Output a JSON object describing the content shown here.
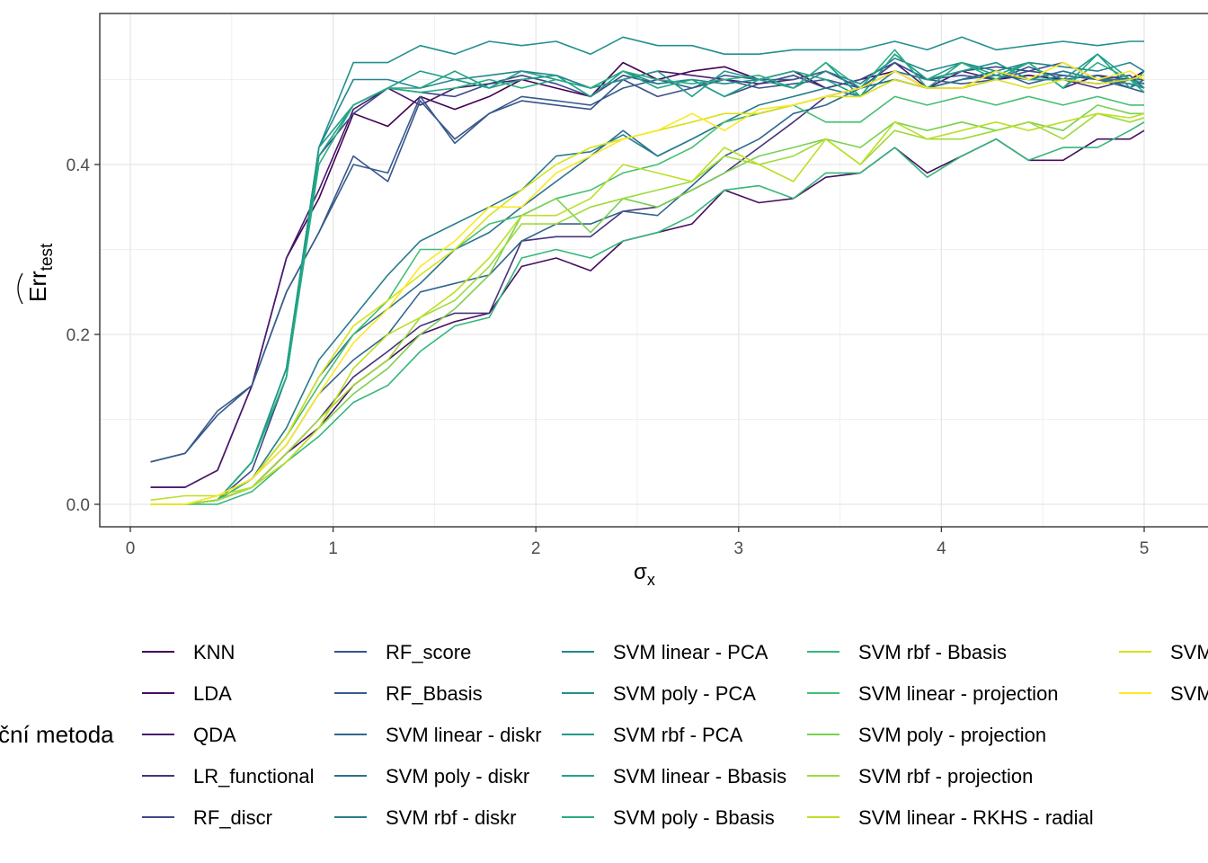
{
  "chart_data": {
    "type": "line",
    "xlabel": "σ",
    "xlabel_sub": "x",
    "ylabel": "Err",
    "ylabel_sub": "test",
    "xlim": [
      -0.15,
      5.3
    ],
    "ylim": [
      -0.025,
      0.57
    ],
    "xticks": [
      0,
      1,
      2,
      3,
      4,
      5
    ],
    "yticks": [
      0.0,
      0.2,
      0.4
    ],
    "xtick_labels": [
      "0",
      "1",
      "2",
      "3",
      "4",
      "5"
    ],
    "ytick_labels": [
      "0.0",
      "0.2",
      "0.4"
    ],
    "grid": true,
    "legend_title": "Klasifikační metoda",
    "legend_title_visible": "ční metoda",
    "legend_position": "bottom",
    "x": [
      0.1,
      0.27,
      0.43,
      0.6,
      0.77,
      0.93,
      1.1,
      1.27,
      1.43,
      1.6,
      1.77,
      1.93,
      2.1,
      2.27,
      2.43,
      2.6,
      2.77,
      2.93,
      3.1,
      3.27,
      3.43,
      3.6,
      3.77,
      3.93,
      4.1,
      4.27,
      4.43,
      4.6,
      4.77,
      4.93,
      5.0
    ],
    "series": [
      {
        "name": "KNN",
        "color": "#440154",
        "values": [
          0.02,
          0.02,
          0.04,
          0.14,
          0.29,
          0.36,
          0.46,
          0.445,
          0.48,
          0.465,
          0.48,
          0.5,
          0.49,
          0.48,
          0.52,
          0.5,
          0.51,
          0.515,
          0.5,
          0.51,
          0.49,
          0.5,
          0.51,
          0.49,
          0.49,
          0.5,
          0.505,
          0.5,
          0.495,
          0.5,
          0.51
        ]
      },
      {
        "name": "LDA",
        "color": "#470E61",
        "values": [
          0.0,
          0.0,
          0.005,
          0.02,
          0.06,
          0.09,
          0.14,
          0.17,
          0.2,
          0.215,
          0.225,
          0.28,
          0.29,
          0.275,
          0.31,
          0.32,
          0.33,
          0.37,
          0.355,
          0.36,
          0.385,
          0.39,
          0.42,
          0.39,
          0.41,
          0.43,
          0.405,
          0.405,
          0.43,
          0.43,
          0.44
        ]
      },
      {
        "name": "QDA",
        "color": "#481B6D",
        "values": [
          0.02,
          0.02,
          0.04,
          0.14,
          0.29,
          0.37,
          0.465,
          0.49,
          0.47,
          0.49,
          0.495,
          0.5,
          0.505,
          0.49,
          0.5,
          0.51,
          0.505,
          0.5,
          0.495,
          0.5,
          0.51,
          0.49,
          0.52,
          0.49,
          0.51,
          0.5,
          0.52,
          0.49,
          0.505,
          0.5,
          0.495
        ]
      },
      {
        "name": "LR_functional",
        "color": "#46337E",
        "values": [
          0.0,
          0.0,
          0.005,
          0.02,
          0.06,
          0.1,
          0.15,
          0.18,
          0.21,
          0.225,
          0.225,
          0.31,
          0.315,
          0.315,
          0.345,
          0.35,
          0.37,
          0.39,
          0.42,
          0.45,
          0.48,
          0.49,
          0.5,
          0.49,
          0.5,
          0.51,
          0.5,
          0.5,
          0.49,
          0.5,
          0.5
        ]
      },
      {
        "name": "RF_discr",
        "color": "#3F4889",
        "values": [
          0.0,
          0.0,
          0.005,
          0.04,
          0.15,
          0.41,
          0.46,
          0.49,
          0.485,
          0.48,
          0.495,
          0.505,
          0.495,
          0.48,
          0.505,
          0.495,
          0.5,
          0.48,
          0.495,
          0.505,
          0.49,
          0.5,
          0.52,
          0.5,
          0.51,
          0.515,
          0.51,
          0.52,
          0.5,
          0.505,
          0.49
        ]
      },
      {
        "name": "RF_score",
        "color": "#3A528B",
        "values": [
          0.05,
          0.06,
          0.105,
          0.14,
          0.25,
          0.32,
          0.41,
          0.38,
          0.475,
          0.43,
          0.46,
          0.475,
          0.47,
          0.465,
          0.5,
          0.48,
          0.49,
          0.5,
          0.49,
          0.495,
          0.5,
          0.49,
          0.52,
          0.5,
          0.505,
          0.5,
          0.51,
          0.505,
          0.5,
          0.5,
          0.5
        ]
      },
      {
        "name": "RF_Bbasis",
        "color": "#365C8D",
        "values": [
          0.05,
          0.06,
          0.11,
          0.14,
          0.25,
          0.32,
          0.4,
          0.39,
          0.48,
          0.425,
          0.46,
          0.48,
          0.475,
          0.47,
          0.49,
          0.5,
          0.49,
          0.505,
          0.5,
          0.5,
          0.51,
          0.49,
          0.51,
          0.5,
          0.495,
          0.5,
          0.515,
          0.5,
          0.505,
          0.49,
          0.485
        ]
      },
      {
        "name": "SVM linear - diskr",
        "color": "#30678D",
        "values": [
          0.0,
          0.0,
          0.005,
          0.03,
          0.07,
          0.13,
          0.17,
          0.2,
          0.25,
          0.26,
          0.27,
          0.31,
          0.33,
          0.33,
          0.345,
          0.34,
          0.375,
          0.41,
          0.43,
          0.46,
          0.47,
          0.49,
          0.5,
          0.49,
          0.5,
          0.51,
          0.495,
          0.505,
          0.5,
          0.49,
          0.5
        ]
      },
      {
        "name": "SVM poly - diskr",
        "color": "#2C718E",
        "values": [
          0.0,
          0.0,
          0.005,
          0.03,
          0.08,
          0.15,
          0.2,
          0.23,
          0.26,
          0.3,
          0.32,
          0.35,
          0.38,
          0.41,
          0.44,
          0.41,
          0.43,
          0.45,
          0.46,
          0.47,
          0.48,
          0.49,
          0.5,
          0.49,
          0.5,
          0.505,
          0.5,
          0.51,
          0.5,
          0.495,
          0.49
        ]
      },
      {
        "name": "SVM rbf - diskr",
        "color": "#287C8E",
        "values": [
          0.0,
          0.0,
          0.005,
          0.03,
          0.09,
          0.17,
          0.22,
          0.27,
          0.31,
          0.33,
          0.35,
          0.37,
          0.41,
          0.415,
          0.435,
          0.41,
          0.43,
          0.45,
          0.47,
          0.48,
          0.49,
          0.48,
          0.51,
          0.5,
          0.51,
          0.52,
          0.5,
          0.51,
          0.5,
          0.5,
          0.495
        ]
      },
      {
        "name": "SVM linear - PCA",
        "color": "#24868E",
        "values": [
          0.0,
          0.0,
          0.005,
          0.05,
          0.16,
          0.42,
          0.5,
          0.5,
          0.49,
          0.5,
          0.505,
          0.51,
          0.505,
          0.49,
          0.51,
          0.495,
          0.5,
          0.495,
          0.5,
          0.49,
          0.51,
          0.495,
          0.525,
          0.51,
          0.52,
          0.51,
          0.52,
          0.515,
          0.51,
          0.52,
          0.51
        ]
      },
      {
        "name": "SVM poly - PCA",
        "color": "#21908C",
        "values": [
          0.0,
          0.0,
          0.005,
          0.05,
          0.16,
          0.42,
          0.52,
          0.52,
          0.54,
          0.53,
          0.545,
          0.54,
          0.545,
          0.53,
          0.55,
          0.54,
          0.54,
          0.53,
          0.53,
          0.535,
          0.535,
          0.535,
          0.545,
          0.535,
          0.55,
          0.535,
          0.54,
          0.545,
          0.54,
          0.545,
          0.545
        ]
      },
      {
        "name": "SVM rbf - PCA",
        "color": "#1F9A8A",
        "values": [
          0.0,
          0.0,
          0.005,
          0.05,
          0.16,
          0.42,
          0.47,
          0.49,
          0.51,
          0.5,
          0.49,
          0.51,
          0.5,
          0.49,
          0.5,
          0.51,
          0.48,
          0.51,
          0.5,
          0.49,
          0.52,
          0.48,
          0.53,
          0.5,
          0.51,
          0.52,
          0.5,
          0.5,
          0.53,
          0.49,
          0.51
        ]
      },
      {
        "name": "SVM linear - Bbasis",
        "color": "#20A486",
        "values": [
          0.0,
          0.0,
          0.005,
          0.05,
          0.15,
          0.41,
          0.47,
          0.49,
          0.49,
          0.51,
          0.49,
          0.5,
          0.505,
          0.48,
          0.51,
          0.49,
          0.5,
          0.48,
          0.5,
          0.51,
          0.5,
          0.48,
          0.53,
          0.5,
          0.52,
          0.505,
          0.52,
          0.49,
          0.53,
          0.5,
          0.49
        ]
      },
      {
        "name": "SVM poly - Bbasis",
        "color": "#27AD81",
        "values": [
          0.0,
          0.0,
          0.005,
          0.05,
          0.15,
          0.4,
          0.47,
          0.49,
          0.485,
          0.49,
          0.5,
          0.49,
          0.5,
          0.49,
          0.51,
          0.5,
          0.495,
          0.5,
          0.505,
          0.49,
          0.52,
          0.49,
          0.535,
          0.49,
          0.52,
          0.5,
          0.52,
          0.49,
          0.52,
          0.5,
          0.485
        ]
      },
      {
        "name": "SVM rbf - Bbasis",
        "color": "#35B779",
        "values": [
          0.0,
          0.0,
          0.0,
          0.015,
          0.05,
          0.08,
          0.12,
          0.14,
          0.18,
          0.21,
          0.22,
          0.29,
          0.3,
          0.29,
          0.31,
          0.32,
          0.34,
          0.37,
          0.375,
          0.36,
          0.39,
          0.39,
          0.42,
          0.385,
          0.41,
          0.43,
          0.405,
          0.42,
          0.42,
          0.44,
          0.45
        ]
      },
      {
        "name": "SVM linear - projection",
        "color": "#43BF71",
        "values": [
          0.0,
          0.0,
          0.005,
          0.03,
          0.08,
          0.14,
          0.2,
          0.24,
          0.3,
          0.3,
          0.33,
          0.34,
          0.36,
          0.37,
          0.39,
          0.4,
          0.42,
          0.45,
          0.46,
          0.47,
          0.45,
          0.45,
          0.48,
          0.47,
          0.48,
          0.47,
          0.48,
          0.47,
          0.48,
          0.47,
          0.47
        ]
      },
      {
        "name": "SVM poly - projection",
        "color": "#7AD151",
        "values": [
          0.0,
          0.0,
          0.005,
          0.02,
          0.05,
          0.09,
          0.13,
          0.16,
          0.2,
          0.23,
          0.27,
          0.34,
          0.36,
          0.32,
          0.36,
          0.35,
          0.37,
          0.39,
          0.41,
          0.42,
          0.43,
          0.42,
          0.45,
          0.44,
          0.45,
          0.44,
          0.45,
          0.44,
          0.47,
          0.46,
          0.46
        ]
      },
      {
        "name": "SVM rbf - projection",
        "color": "#A0DA39",
        "values": [
          0.0,
          0.0,
          0.005,
          0.02,
          0.06,
          0.1,
          0.14,
          0.17,
          0.22,
          0.24,
          0.28,
          0.33,
          0.33,
          0.35,
          0.36,
          0.37,
          0.38,
          0.41,
          0.4,
          0.41,
          0.43,
          0.4,
          0.44,
          0.43,
          0.43,
          0.44,
          0.45,
          0.43,
          0.46,
          0.45,
          0.455
        ]
      },
      {
        "name": "SVM linear - RKHS - radial",
        "color": "#BDDF26",
        "values": [
          0.005,
          0.01,
          0.01,
          0.02,
          0.05,
          0.09,
          0.16,
          0.2,
          0.22,
          0.25,
          0.29,
          0.34,
          0.34,
          0.36,
          0.4,
          0.39,
          0.38,
          0.42,
          0.4,
          0.38,
          0.43,
          0.4,
          0.45,
          0.43,
          0.44,
          0.45,
          0.44,
          0.45,
          0.46,
          0.455,
          0.46
        ]
      },
      {
        "name": "SVM poly - RKHS - radial",
        "color": "#D8E219",
        "values": [
          0.0,
          0.0,
          0.01,
          0.03,
          0.08,
          0.15,
          0.21,
          0.24,
          0.27,
          0.3,
          0.34,
          0.37,
          0.4,
          0.42,
          0.43,
          0.44,
          0.45,
          0.46,
          0.46,
          0.47,
          0.48,
          0.48,
          0.5,
          0.49,
          0.49,
          0.5,
          0.49,
          0.5,
          0.495,
          0.5,
          0.505
        ]
      },
      {
        "name": "SVM rbf - RKHS - radial",
        "color": "#FDE725",
        "values": [
          0.0,
          0.0,
          0.01,
          0.03,
          0.07,
          0.13,
          0.19,
          0.23,
          0.28,
          0.31,
          0.35,
          0.35,
          0.39,
          0.41,
          0.43,
          0.44,
          0.46,
          0.44,
          0.465,
          0.47,
          0.48,
          0.49,
          0.51,
          0.49,
          0.49,
          0.51,
          0.5,
          0.52,
          0.5,
          0.51,
          0.5
        ]
      }
    ]
  }
}
